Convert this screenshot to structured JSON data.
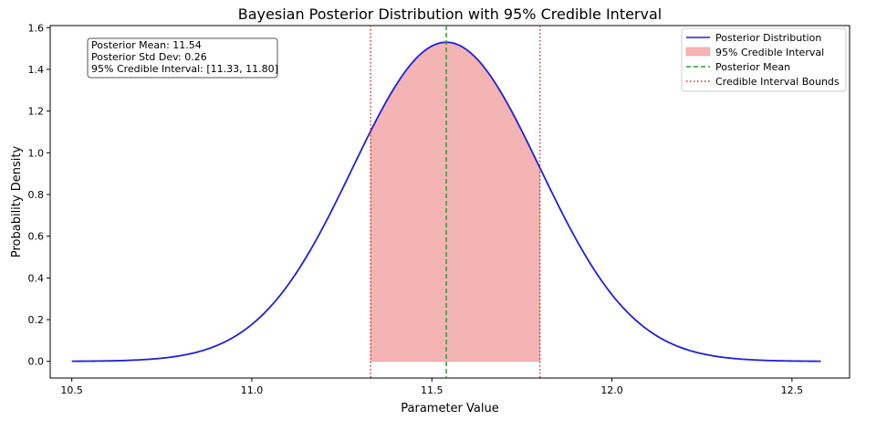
{
  "chart_data": {
    "type": "line",
    "title": "Bayesian Posterior Distribution with 95% Credible Interval",
    "xlabel": "Parameter Value",
    "ylabel": "Probability Density",
    "xlim": [
      10.44,
      12.66
    ],
    "ylim": [
      -0.08,
      1.61
    ],
    "xticks": [
      10.5,
      11.0,
      11.5,
      12.0,
      12.5
    ],
    "xtick_labels": [
      "10.5",
      "11.0",
      "11.5",
      "12.0",
      "12.5"
    ],
    "yticks": [
      0.0,
      0.2,
      0.4,
      0.6,
      0.8,
      1.0,
      1.2,
      1.4,
      1.6
    ],
    "ytick_labels": [
      "0.0",
      "0.2",
      "0.4",
      "0.6",
      "0.8",
      "1.0",
      "1.2",
      "1.4",
      "1.6"
    ],
    "grid": false,
    "legend_position": "top-right",
    "posterior": {
      "mean": 11.54,
      "std": 0.26,
      "x_range": [
        10.5,
        12.58
      ],
      "peak": 1.53
    },
    "credible_interval": [
      11.33,
      11.8
    ],
    "series": [
      {
        "name": "Posterior Distribution",
        "kind": "line",
        "color": "#1f1fde"
      },
      {
        "name": "95% Credible Interval",
        "kind": "fill",
        "color": "#f4b4b4"
      },
      {
        "name": "Posterior Mean",
        "kind": "dashed-line",
        "color": "#2ca02c"
      },
      {
        "name": "Credible Interval Bounds",
        "kind": "dotted-line",
        "color": "#d62728"
      }
    ],
    "stats_box": [
      "Posterior Mean: 11.54",
      "Posterior Std Dev: 0.26",
      "95% Credible Interval: [11.33, 11.80]"
    ]
  }
}
